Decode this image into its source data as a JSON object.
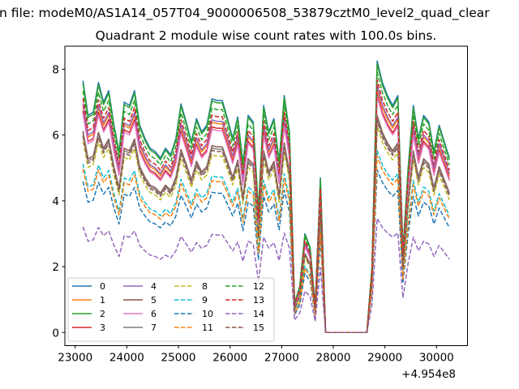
{
  "chart_data": {
    "type": "line",
    "suptitle": "n file: modeM0/AS1A14_057T04_9000006508_53879cztM0_level2_quad_clear",
    "title": "Quadrant 2 module wise count rates with 100.0s bins.",
    "xlabel": "",
    "ylabel": "",
    "x_offset_label": "+4.954e8",
    "x_start": 23150,
    "x_step": 100,
    "xlim": [
      22800,
      30600
    ],
    "ylim": [
      -0.4,
      8.7
    ],
    "xticks": [
      23000,
      24000,
      25000,
      26000,
      27000,
      28000,
      29000,
      30000
    ],
    "xtick_labels": [
      "23000",
      "24000",
      "25000",
      "26000",
      "27000",
      "28000",
      "29000",
      "30000"
    ],
    "yticks": [
      0,
      2,
      4,
      6,
      8
    ],
    "ytick_labels": [
      "0",
      "2",
      "4",
      "6",
      "8"
    ],
    "grid": false,
    "legend_position": "lower-left",
    "legend_columns": 4,
    "note": "series values = reference profile (module 0) x series scale",
    "reference_profile": [
      7.65,
      6.6,
      6.7,
      7.6,
      7.0,
      7.35,
      6.3,
      5.5,
      7.0,
      6.9,
      7.35,
      6.3,
      5.9,
      5.6,
      5.5,
      5.3,
      5.6,
      5.4,
      5.9,
      6.95,
      6.4,
      5.8,
      6.5,
      6.1,
      6.3,
      7.1,
      7.05,
      7.05,
      6.5,
      5.9,
      6.55,
      5.15,
      6.6,
      6.4,
      3.7,
      6.9,
      6.1,
      6.5,
      5.2,
      7.2,
      6.1,
      0.9,
      1.4,
      3.0,
      2.6,
      0.8,
      4.7,
      0,
      0,
      0,
      0,
      0,
      0,
      0,
      0,
      0,
      2.0,
      8.25,
      7.6,
      7.2,
      6.9,
      7.2,
      2.5,
      5.0,
      6.9,
      5.9,
      6.6,
      6.4,
      5.5,
      6.3,
      5.8,
      5.3
    ],
    "series": [
      {
        "name": "0",
        "scale": 1.0,
        "color": "#1f77b4",
        "style": "solid"
      },
      {
        "name": "1",
        "scale": 0.9,
        "color": "#ff7f0e",
        "style": "solid"
      },
      {
        "name": "2",
        "scale": 0.99,
        "color": "#2ca02c",
        "style": "solid"
      },
      {
        "name": "3",
        "scale": 0.88,
        "color": "#d62728",
        "style": "solid"
      },
      {
        "name": "4",
        "scale": 0.91,
        "color": "#9467bd",
        "style": "solid"
      },
      {
        "name": "5",
        "scale": 0.8,
        "color": "#8c564b",
        "style": "solid"
      },
      {
        "name": "6",
        "scale": 0.87,
        "color": "#e377c2",
        "style": "solid"
      },
      {
        "name": "7",
        "scale": 0.79,
        "color": "#7f7f7f",
        "style": "solid"
      },
      {
        "name": "8",
        "scale": 0.76,
        "color": "#bcbd22",
        "style": "dashed"
      },
      {
        "name": "9",
        "scale": 0.67,
        "color": "#17becf",
        "style": "dashed"
      },
      {
        "name": "10",
        "scale": 0.6,
        "color": "#1f77b4",
        "style": "dashed"
      },
      {
        "name": "11",
        "scale": 0.65,
        "color": "#ff7f0e",
        "style": "dashed"
      },
      {
        "name": "12",
        "scale": 0.96,
        "color": "#2ca02c",
        "style": "dashed"
      },
      {
        "name": "13",
        "scale": 0.93,
        "color": "#d62728",
        "style": "dashed"
      },
      {
        "name": "14",
        "scale": 0.42,
        "color": "#9467bd",
        "style": "dashed"
      },
      {
        "name": "15",
        "scale": 0.78,
        "color": "#8c564b",
        "style": "dashed"
      }
    ]
  }
}
